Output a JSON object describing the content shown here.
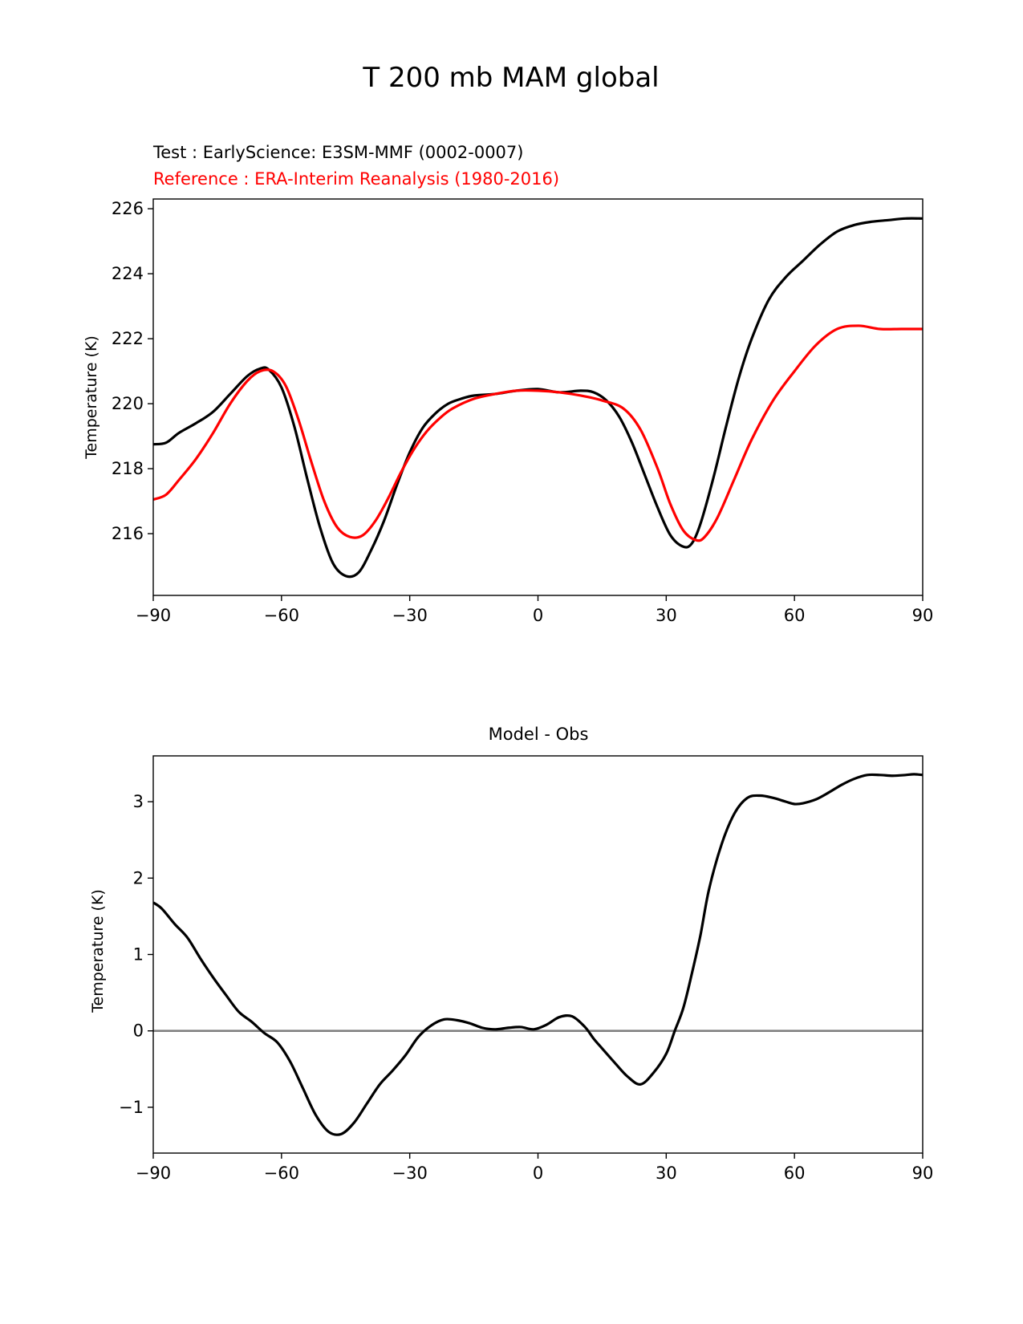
{
  "suptitle": "T 200 mb MAM global",
  "colors": {
    "test": "#000000",
    "reference": "#ff0000",
    "zero_line": "#808080"
  },
  "chart_data": [
    {
      "type": "line",
      "test_label": "Test : EarlyScience: E3SM-MMF (0002-0007)",
      "reference_label": "Reference : ERA-Interim Reanalysis (1980-2016)",
      "xlabel": "",
      "ylabel": "Temperature (K)",
      "xlim": [
        -90,
        90
      ],
      "ylim": [
        214.1,
        226.3
      ],
      "xticks": [
        -90,
        -60,
        -30,
        0,
        30,
        60,
        90
      ],
      "xtick_labels": [
        "−90",
        "−60",
        "−30",
        "0",
        "30",
        "60",
        "90"
      ],
      "yticks": [
        216,
        218,
        220,
        222,
        224,
        226
      ],
      "ytick_labels": [
        "216",
        "218",
        "220",
        "222",
        "224",
        "226"
      ],
      "series": [
        {
          "name": "Test",
          "color": "#000000",
          "x": [
            -90,
            -87,
            -84,
            -80,
            -76,
            -72,
            -68,
            -65,
            -63,
            -60,
            -57,
            -54,
            -51,
            -48,
            -45,
            -42,
            -39,
            -36,
            -33,
            -30,
            -27,
            -24,
            -21,
            -18,
            -15,
            -10,
            -5,
            0,
            5,
            10,
            13,
            16,
            19,
            22,
            25,
            28,
            31,
            34,
            36,
            38,
            41,
            44,
            47,
            50,
            54,
            58,
            62,
            66,
            70,
            74,
            78,
            82,
            86,
            90
          ],
          "y": [
            218.75,
            218.8,
            219.1,
            219.4,
            219.75,
            220.3,
            220.85,
            221.08,
            221.05,
            220.5,
            219.3,
            217.7,
            216.2,
            215.1,
            214.7,
            214.8,
            215.5,
            216.4,
            217.5,
            218.5,
            219.25,
            219.7,
            220.0,
            220.15,
            220.25,
            220.3,
            220.4,
            220.45,
            220.35,
            220.4,
            220.35,
            220.1,
            219.6,
            218.8,
            217.8,
            216.8,
            215.95,
            215.6,
            215.7,
            216.3,
            217.7,
            219.3,
            220.8,
            222.0,
            223.2,
            223.9,
            224.4,
            224.9,
            225.3,
            225.5,
            225.6,
            225.65,
            225.7,
            225.7
          ]
        },
        {
          "name": "Reference",
          "color": "#ff0000",
          "x": [
            -90,
            -87,
            -84,
            -80,
            -76,
            -72,
            -68,
            -65,
            -62,
            -59,
            -56,
            -53,
            -50,
            -47,
            -44,
            -41,
            -38,
            -35,
            -32,
            -29,
            -26,
            -23,
            -20,
            -15,
            -10,
            -5,
            0,
            5,
            10,
            15,
            20,
            24,
            28,
            31,
            34,
            37,
            39,
            42,
            46,
            50,
            55,
            60,
            65,
            70,
            75,
            80,
            85,
            90
          ],
          "y": [
            217.05,
            217.2,
            217.65,
            218.3,
            219.1,
            220.0,
            220.7,
            221.0,
            221.0,
            220.55,
            219.5,
            218.2,
            217.0,
            216.2,
            215.9,
            215.95,
            216.4,
            217.1,
            217.9,
            218.6,
            219.15,
            219.55,
            219.85,
            220.15,
            220.3,
            220.4,
            220.4,
            220.35,
            220.25,
            220.1,
            219.85,
            219.2,
            218.0,
            216.9,
            216.1,
            215.8,
            215.9,
            216.5,
            217.7,
            218.9,
            220.1,
            221.0,
            221.8,
            222.3,
            222.4,
            222.3,
            222.3,
            222.3
          ]
        }
      ]
    },
    {
      "type": "line",
      "title": "Model - Obs",
      "xlabel": "",
      "ylabel": "Temperature (K)",
      "xlim": [
        -90,
        90
      ],
      "ylim": [
        -1.6,
        3.6
      ],
      "xticks": [
        -90,
        -60,
        -30,
        0,
        30,
        60,
        90
      ],
      "xtick_labels": [
        "−90",
        "−60",
        "−30",
        "0",
        "30",
        "60",
        "90"
      ],
      "yticks": [
        -1,
        0,
        1,
        2,
        3
      ],
      "ytick_labels": [
        "−1",
        "0",
        "1",
        "2",
        "3"
      ],
      "reference_line": 0,
      "series": [
        {
          "name": "Model - Obs",
          "color": "#000000",
          "x": [
            -90,
            -88,
            -85,
            -82,
            -79,
            -76,
            -73,
            -70,
            -67,
            -64,
            -61,
            -58,
            -55,
            -52,
            -49,
            -46,
            -43,
            -40,
            -37,
            -34,
            -31,
            -28,
            -25,
            -22,
            -19,
            -16,
            -13,
            -10,
            -7,
            -4,
            -1,
            2,
            5,
            8,
            11,
            13,
            15,
            18,
            21,
            24,
            27,
            30,
            32,
            34,
            36,
            38,
            40,
            43,
            46,
            49,
            52,
            55,
            58,
            60,
            62,
            65,
            68,
            71,
            74,
            77,
            80,
            83,
            86,
            88,
            90
          ],
          "y": [
            1.68,
            1.6,
            1.4,
            1.22,
            0.95,
            0.7,
            0.47,
            0.25,
            0.12,
            -0.03,
            -0.15,
            -0.4,
            -0.75,
            -1.1,
            -1.32,
            -1.35,
            -1.2,
            -0.95,
            -0.7,
            -0.52,
            -0.32,
            -0.08,
            0.07,
            0.15,
            0.14,
            0.1,
            0.04,
            0.02,
            0.04,
            0.05,
            0.02,
            0.08,
            0.18,
            0.19,
            0.05,
            -0.1,
            -0.23,
            -0.42,
            -0.6,
            -0.7,
            -0.55,
            -0.3,
            0.0,
            0.3,
            0.75,
            1.25,
            1.85,
            2.45,
            2.85,
            3.05,
            3.08,
            3.05,
            3.0,
            2.97,
            2.98,
            3.03,
            3.12,
            3.22,
            3.3,
            3.35,
            3.35,
            3.34,
            3.35,
            3.36,
            3.35
          ]
        }
      ]
    }
  ]
}
